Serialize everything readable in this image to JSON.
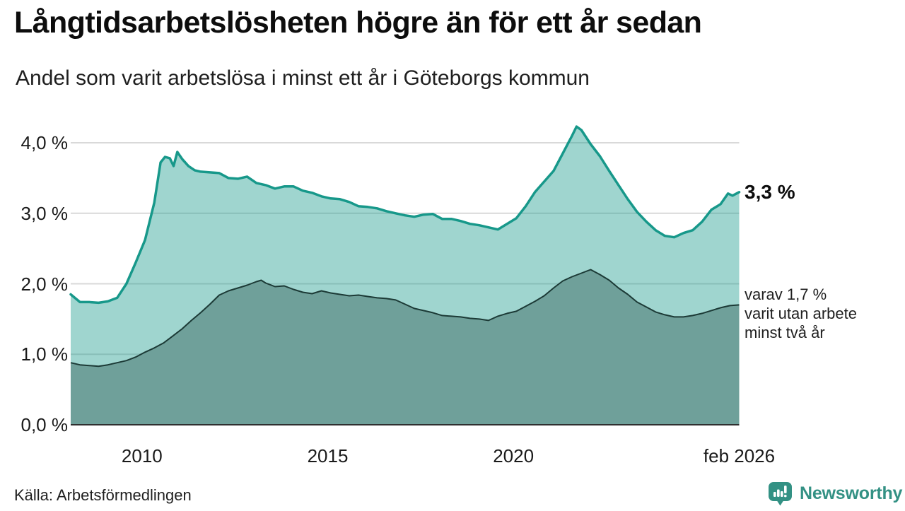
{
  "chart_data": {
    "type": "area",
    "title": "Långtidsarbetslösheten högre än för ett år sedan",
    "subtitle": "Andel som varit arbetslösa i minst ett år i Göteborgs kommun",
    "xlabel": "",
    "ylabel": "",
    "x_unit": "decimal_year",
    "x_range": [
      2008.08,
      2026.08
    ],
    "ylim": [
      0,
      4.45
    ],
    "grid": true,
    "legend_position": "end-labels-right",
    "yticks": [
      {
        "label": "4,0 %",
        "value": 4.0
      },
      {
        "label": "3,0 %",
        "value": 3.0
      },
      {
        "label": "2,0 %",
        "value": 2.0
      },
      {
        "label": "1,0 %",
        "value": 1.0
      },
      {
        "label": "0,0 %",
        "value": 0.0
      }
    ],
    "xticks": [
      {
        "label": "2010",
        "year": 2010.0
      },
      {
        "label": "2015",
        "year": 2015.0
      },
      {
        "label": "2020",
        "year": 2020.0
      },
      {
        "label": "feb 2026",
        "year": 2026.08
      }
    ],
    "series": [
      {
        "name": "Andel som varit arbetslösa minst ett år",
        "color": "#17988a",
        "fill": "rgba(26,156,140,0.42)",
        "line_width": 3.5,
        "end_label": "3,3 %",
        "end_value": 3.3,
        "points": [
          [
            2008.08,
            1.85
          ],
          [
            2008.33,
            1.74
          ],
          [
            2008.58,
            1.74
          ],
          [
            2008.83,
            1.73
          ],
          [
            2009.08,
            1.75
          ],
          [
            2009.33,
            1.8
          ],
          [
            2009.58,
            2.0
          ],
          [
            2009.83,
            2.3
          ],
          [
            2010.08,
            2.62
          ],
          [
            2010.33,
            3.15
          ],
          [
            2010.5,
            3.72
          ],
          [
            2010.62,
            3.8
          ],
          [
            2010.75,
            3.78
          ],
          [
            2010.85,
            3.67
          ],
          [
            2010.95,
            3.87
          ],
          [
            2011.08,
            3.77
          ],
          [
            2011.25,
            3.67
          ],
          [
            2011.42,
            3.61
          ],
          [
            2011.58,
            3.59
          ],
          [
            2011.83,
            3.58
          ],
          [
            2012.08,
            3.57
          ],
          [
            2012.33,
            3.5
          ],
          [
            2012.58,
            3.49
          ],
          [
            2012.83,
            3.52
          ],
          [
            2013.08,
            3.43
          ],
          [
            2013.33,
            3.4
          ],
          [
            2013.58,
            3.35
          ],
          [
            2013.83,
            3.38
          ],
          [
            2014.08,
            3.38
          ],
          [
            2014.33,
            3.32
          ],
          [
            2014.58,
            3.29
          ],
          [
            2014.83,
            3.24
          ],
          [
            2015.08,
            3.21
          ],
          [
            2015.33,
            3.2
          ],
          [
            2015.58,
            3.16
          ],
          [
            2015.83,
            3.1
          ],
          [
            2016.08,
            3.09
          ],
          [
            2016.33,
            3.07
          ],
          [
            2016.58,
            3.03
          ],
          [
            2016.83,
            3.0
          ],
          [
            2017.08,
            2.97
          ],
          [
            2017.33,
            2.95
          ],
          [
            2017.58,
            2.98
          ],
          [
            2017.83,
            2.99
          ],
          [
            2018.08,
            2.92
          ],
          [
            2018.33,
            2.92
          ],
          [
            2018.58,
            2.89
          ],
          [
            2018.83,
            2.85
          ],
          [
            2019.08,
            2.83
          ],
          [
            2019.33,
            2.8
          ],
          [
            2019.58,
            2.77
          ],
          [
            2019.83,
            2.85
          ],
          [
            2020.08,
            2.93
          ],
          [
            2020.33,
            3.1
          ],
          [
            2020.58,
            3.3
          ],
          [
            2020.83,
            3.45
          ],
          [
            2021.08,
            3.6
          ],
          [
            2021.33,
            3.85
          ],
          [
            2021.58,
            4.1
          ],
          [
            2021.7,
            4.23
          ],
          [
            2021.83,
            4.18
          ],
          [
            2022.08,
            3.98
          ],
          [
            2022.33,
            3.81
          ],
          [
            2022.58,
            3.6
          ],
          [
            2022.83,
            3.4
          ],
          [
            2023.08,
            3.2
          ],
          [
            2023.33,
            3.02
          ],
          [
            2023.58,
            2.88
          ],
          [
            2023.83,
            2.76
          ],
          [
            2024.08,
            2.68
          ],
          [
            2024.33,
            2.66
          ],
          [
            2024.58,
            2.72
          ],
          [
            2024.83,
            2.76
          ],
          [
            2025.08,
            2.88
          ],
          [
            2025.33,
            3.05
          ],
          [
            2025.58,
            3.13
          ],
          [
            2025.78,
            3.28
          ],
          [
            2025.9,
            3.25
          ],
          [
            2026.08,
            3.3
          ]
        ]
      },
      {
        "name": "varav utan arbete minst två år",
        "color": "#1c3a36",
        "fill": "#6fa09a",
        "line_width": 2,
        "end_label_lines": [
          "varav 1,7 %",
          "varit utan arbete",
          "minst två år"
        ],
        "end_value": 1.7,
        "points": [
          [
            2008.08,
            0.88
          ],
          [
            2008.33,
            0.85
          ],
          [
            2008.58,
            0.84
          ],
          [
            2008.83,
            0.83
          ],
          [
            2009.08,
            0.85
          ],
          [
            2009.33,
            0.88
          ],
          [
            2009.58,
            0.91
          ],
          [
            2009.83,
            0.96
          ],
          [
            2010.08,
            1.03
          ],
          [
            2010.33,
            1.09
          ],
          [
            2010.58,
            1.16
          ],
          [
            2010.83,
            1.26
          ],
          [
            2011.08,
            1.36
          ],
          [
            2011.33,
            1.48
          ],
          [
            2011.58,
            1.59
          ],
          [
            2011.83,
            1.71
          ],
          [
            2012.08,
            1.84
          ],
          [
            2012.33,
            1.9
          ],
          [
            2012.58,
            1.94
          ],
          [
            2012.83,
            1.98
          ],
          [
            2013.08,
            2.03
          ],
          [
            2013.21,
            2.05
          ],
          [
            2013.33,
            2.01
          ],
          [
            2013.58,
            1.96
          ],
          [
            2013.83,
            1.97
          ],
          [
            2014.08,
            1.92
          ],
          [
            2014.33,
            1.88
          ],
          [
            2014.58,
            1.86
          ],
          [
            2014.83,
            1.9
          ],
          [
            2015.08,
            1.87
          ],
          [
            2015.33,
            1.85
          ],
          [
            2015.58,
            1.83
          ],
          [
            2015.83,
            1.84
          ],
          [
            2016.08,
            1.82
          ],
          [
            2016.33,
            1.8
          ],
          [
            2016.58,
            1.79
          ],
          [
            2016.83,
            1.77
          ],
          [
            2017.08,
            1.71
          ],
          [
            2017.33,
            1.65
          ],
          [
            2017.58,
            1.62
          ],
          [
            2017.83,
            1.59
          ],
          [
            2018.08,
            1.55
          ],
          [
            2018.33,
            1.54
          ],
          [
            2018.58,
            1.53
          ],
          [
            2018.83,
            1.51
          ],
          [
            2019.08,
            1.5
          ],
          [
            2019.33,
            1.48
          ],
          [
            2019.58,
            1.54
          ],
          [
            2019.83,
            1.58
          ],
          [
            2020.08,
            1.61
          ],
          [
            2020.33,
            1.68
          ],
          [
            2020.58,
            1.75
          ],
          [
            2020.83,
            1.83
          ],
          [
            2021.08,
            1.94
          ],
          [
            2021.33,
            2.04
          ],
          [
            2021.58,
            2.1
          ],
          [
            2021.83,
            2.15
          ],
          [
            2022.08,
            2.2
          ],
          [
            2022.33,
            2.13
          ],
          [
            2022.58,
            2.05
          ],
          [
            2022.83,
            1.94
          ],
          [
            2023.08,
            1.85
          ],
          [
            2023.33,
            1.74
          ],
          [
            2023.58,
            1.67
          ],
          [
            2023.83,
            1.6
          ],
          [
            2024.08,
            1.56
          ],
          [
            2024.33,
            1.53
          ],
          [
            2024.58,
            1.53
          ],
          [
            2024.83,
            1.55
          ],
          [
            2025.08,
            1.58
          ],
          [
            2025.33,
            1.62
          ],
          [
            2025.58,
            1.66
          ],
          [
            2025.83,
            1.69
          ],
          [
            2026.08,
            1.7
          ]
        ]
      }
    ]
  },
  "colors": {
    "accent_teal": "#17988a",
    "light_area_fill": "rgba(26,156,140,0.42)",
    "dark_area_fill": "#6fa09a",
    "dark_line": "#1c3a36",
    "gridline": "#d9d9d9",
    "axis_line": "#2f2f2f",
    "brand_teal": "#339184"
  },
  "footer": {
    "source": "Källa: Arbetsförmedlingen",
    "brand": "Newsworthy",
    "brand_icon": "bar-chart-speech-bubble-icon"
  }
}
